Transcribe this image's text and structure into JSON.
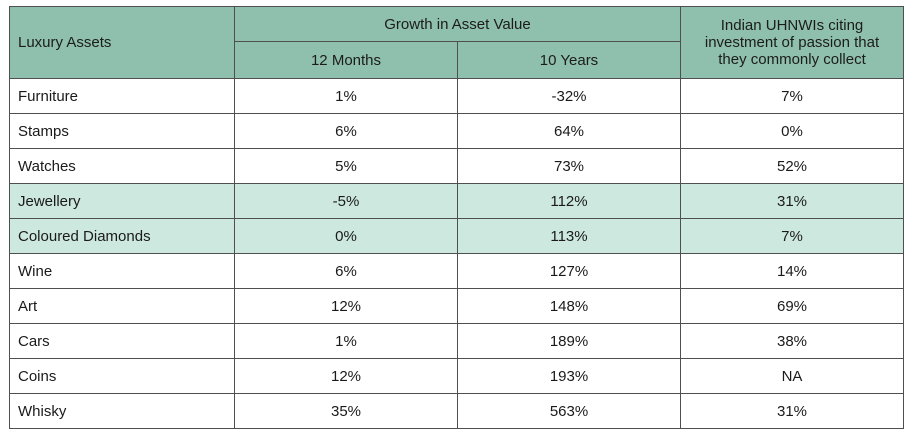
{
  "table": {
    "header": {
      "asset_col": "Luxury Assets",
      "group": "Growth in Asset Value",
      "col_12m": "12 Months",
      "col_10y": "10 Years",
      "col_uhnwi": "Indian UHNWIs citing investment of passion that they commonly collect"
    },
    "rows": [
      {
        "asset": "Furniture",
        "m12": "1%",
        "y10": "-32%",
        "uhnwi": "7%",
        "highlight": false
      },
      {
        "asset": "Stamps",
        "m12": "6%",
        "y10": "64%",
        "uhnwi": "0%",
        "highlight": false
      },
      {
        "asset": "Watches",
        "m12": "5%",
        "y10": "73%",
        "uhnwi": "52%",
        "highlight": false
      },
      {
        "asset": "Jewellery",
        "m12": "-5%",
        "y10": "112%",
        "uhnwi": "31%",
        "highlight": true
      },
      {
        "asset": "Coloured Diamonds",
        "m12": "0%",
        "y10": "113%",
        "uhnwi": "7%",
        "highlight": true
      },
      {
        "asset": "Wine",
        "m12": "6%",
        "y10": "127%",
        "uhnwi": "14%",
        "highlight": false
      },
      {
        "asset": "Art",
        "m12": "12%",
        "y10": "148%",
        "uhnwi": "69%",
        "highlight": false
      },
      {
        "asset": "Cars",
        "m12": "1%",
        "y10": "189%",
        "uhnwi": "38%",
        "highlight": false
      },
      {
        "asset": "Coins",
        "m12": "12%",
        "y10": "193%",
        "uhnwi": "NA",
        "highlight": false
      },
      {
        "asset": "Whisky",
        "m12": "35%",
        "y10": "563%",
        "uhnwi": "31%",
        "highlight": false
      }
    ],
    "colors": {
      "header_bg": "#8fc0ae",
      "highlight_bg": "#cde8df",
      "border": "#4f4f4f"
    }
  }
}
